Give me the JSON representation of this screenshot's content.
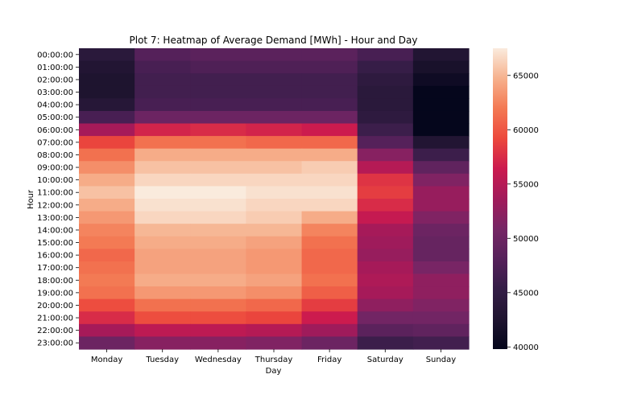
{
  "chart_data": {
    "type": "heatmap",
    "title": "Plot 7: Heatmap of Average Demand [MWh] - Hour and Day",
    "xlabel": "Day",
    "ylabel": "Hour",
    "x_categories": [
      "Monday",
      "Tuesday",
      "Wednesday",
      "Thursday",
      "Friday",
      "Saturday",
      "Sunday"
    ],
    "y_categories": [
      "00:00:00",
      "01:00:00",
      "02:00:00",
      "03:00:00",
      "04:00:00",
      "05:00:00",
      "06:00:00",
      "07:00:00",
      "08:00:00",
      "09:00:00",
      "10:00:00",
      "11:00:00",
      "12:00:00",
      "13:00:00",
      "14:00:00",
      "15:00:00",
      "16:00:00",
      "17:00:00",
      "18:00:00",
      "19:00:00",
      "20:00:00",
      "21:00:00",
      "22:00:00",
      "23:00:00"
    ],
    "values": [
      [
        44000,
        48000,
        48500,
        48500,
        48500,
        47000,
        43000
      ],
      [
        43000,
        47000,
        47500,
        47500,
        47500,
        45500,
        42000
      ],
      [
        42500,
        46500,
        46500,
        46500,
        46500,
        44500,
        41000
      ],
      [
        42500,
        46500,
        46500,
        46500,
        46500,
        44000,
        40000
      ],
      [
        43500,
        47000,
        47000,
        47000,
        47000,
        44000,
        40000
      ],
      [
        47000,
        50000,
        50000,
        50000,
        50000,
        44500,
        40000
      ],
      [
        54000,
        57000,
        57500,
        57000,
        56500,
        46000,
        40000
      ],
      [
        59000,
        61500,
        61500,
        61000,
        61000,
        48000,
        43000
      ],
      [
        61500,
        64500,
        64500,
        64500,
        64500,
        52000,
        46000
      ],
      [
        63000,
        65500,
        65500,
        65500,
        66000,
        55000,
        49000
      ],
      [
        64500,
        66500,
        66500,
        66500,
        66500,
        58000,
        51500
      ],
      [
        65500,
        67500,
        67500,
        67000,
        67000,
        58500,
        53000
      ],
      [
        64500,
        67000,
        67000,
        66500,
        66500,
        57500,
        53000
      ],
      [
        63500,
        66500,
        66500,
        66000,
        64500,
        56000,
        51500
      ],
      [
        62500,
        65000,
        65000,
        65000,
        62500,
        54000,
        50000
      ],
      [
        62000,
        64500,
        64500,
        64000,
        61500,
        53500,
        49500
      ],
      [
        61000,
        64000,
        64000,
        63500,
        61000,
        53000,
        49500
      ],
      [
        61500,
        64000,
        64000,
        63500,
        61000,
        54000,
        51000
      ],
      [
        62000,
        64500,
        64500,
        64000,
        61500,
        54500,
        52500
      ],
      [
        61500,
        63500,
        63500,
        63000,
        60500,
        54000,
        52500
      ],
      [
        59500,
        61500,
        61500,
        61000,
        58500,
        52500,
        51500
      ],
      [
        57500,
        59500,
        59500,
        59000,
        56500,
        50500,
        50500
      ],
      [
        54000,
        55500,
        55500,
        55000,
        53500,
        48500,
        49000
      ],
      [
        50000,
        52000,
        52000,
        51500,
        50000,
        46000,
        46500
      ]
    ],
    "colorbar": {
      "range": [
        39800,
        67500
      ],
      "ticks": [
        40000,
        45000,
        50000,
        55000,
        60000,
        65000
      ],
      "colormap": "rocket"
    }
  }
}
